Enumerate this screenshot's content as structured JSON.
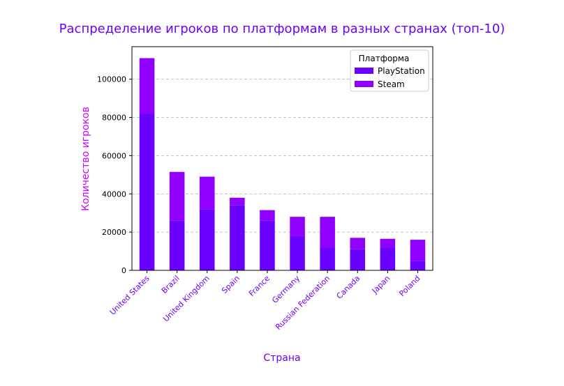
{
  "chart_data": {
    "type": "bar",
    "stacked": true,
    "title": "Распределение игроков по платформам в разных странах (топ-10)",
    "xlabel": "Страна",
    "ylabel": "Количество игроков",
    "categories": [
      "United States",
      "Brazil",
      "United Kingdom",
      "Spain",
      "France",
      "Germany",
      "Russian Federation",
      "Canada",
      "Japan",
      "Poland"
    ],
    "series": [
      {
        "name": "PlayStation",
        "color": "#6a00ff",
        "values": [
          82000,
          26000,
          32000,
          34000,
          26000,
          18000,
          12000,
          11000,
          12000,
          5000
        ]
      },
      {
        "name": "Steam",
        "color": "#8f00ff",
        "values": [
          29000,
          25500,
          17000,
          4000,
          5500,
          10000,
          16000,
          6000,
          4500,
          11000
        ]
      }
    ],
    "ylim": [
      0,
      117000
    ],
    "yticks": [
      0,
      20000,
      40000,
      60000,
      80000,
      100000
    ],
    "grid": "y-dashed",
    "legend": {
      "title": "Платформа",
      "placement": "top-right"
    },
    "colors": {
      "title": "#6a00ff",
      "axis_label": "#cc00ff",
      "tick_label_x": "#6a00ff"
    }
  }
}
